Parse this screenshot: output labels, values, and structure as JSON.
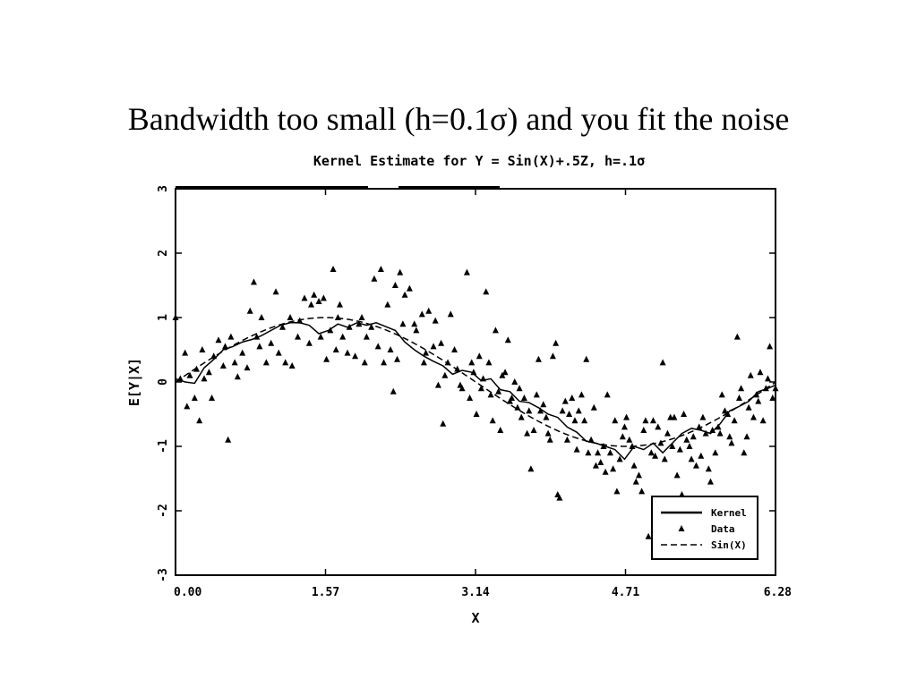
{
  "slide": {
    "title": "Bandwidth too small (h=0.1σ) and you fit the noise"
  },
  "chart_data": {
    "type": "scatter",
    "title": "Kernel Estimate for Y = Sin(X)+.5Z, h=.1σ",
    "xlabel": "X",
    "ylabel": "E[Y|X]",
    "xlim": [
      0,
      6.28
    ],
    "ylim": [
      -3,
      3
    ],
    "x_ticks": [
      "0.00",
      "1.57",
      "3.14",
      "4.71",
      "6.28"
    ],
    "y_ticks": [
      "-3",
      "-2",
      "-1",
      "0",
      "1",
      "2",
      "3"
    ],
    "grid": false,
    "legend": {
      "position": "bottom-right",
      "entries": [
        {
          "label": "Kernel",
          "style": "solid-line"
        },
        {
          "label": "Data",
          "style": "triangle-marker"
        },
        {
          "label": "Sin(X)",
          "style": "dashed-line"
        }
      ]
    },
    "series": [
      {
        "name": "Kernel",
        "style": "solid-line",
        "x": [
          0.0,
          0.1,
          0.2,
          0.3,
          0.4,
          0.5,
          0.6,
          0.7,
          0.8,
          0.9,
          1.0,
          1.1,
          1.2,
          1.3,
          1.4,
          1.5,
          1.6,
          1.7,
          1.8,
          1.9,
          2.0,
          2.1,
          2.2,
          2.3,
          2.4,
          2.5,
          2.6,
          2.7,
          2.8,
          2.9,
          3.0,
          3.1,
          3.2,
          3.3,
          3.4,
          3.5,
          3.6,
          3.7,
          3.8,
          3.9,
          4.0,
          4.1,
          4.2,
          4.3,
          4.4,
          4.5,
          4.6,
          4.7,
          4.8,
          4.9,
          5.0,
          5.1,
          5.2,
          5.3,
          5.4,
          5.5,
          5.6,
          5.7,
          5.8,
          5.9,
          6.0,
          6.1,
          6.2,
          6.28
        ],
        "y": [
          0.05,
          0.0,
          -0.02,
          0.22,
          0.35,
          0.5,
          0.55,
          0.62,
          0.66,
          0.72,
          0.8,
          0.88,
          0.92,
          0.92,
          0.88,
          0.75,
          0.8,
          0.9,
          0.85,
          0.92,
          0.88,
          0.92,
          0.86,
          0.8,
          0.62,
          0.5,
          0.4,
          0.32,
          0.25,
          0.12,
          0.18,
          0.15,
          0.02,
          0.05,
          -0.12,
          -0.15,
          -0.3,
          -0.32,
          -0.4,
          -0.5,
          -0.55,
          -0.7,
          -0.78,
          -0.92,
          -0.95,
          -1.0,
          -1.05,
          -1.2,
          -1.0,
          -1.05,
          -0.95,
          -1.1,
          -0.95,
          -0.8,
          -0.72,
          -0.75,
          -0.8,
          -0.65,
          -0.45,
          -0.38,
          -0.3,
          -0.15,
          -0.1,
          -0.05
        ]
      },
      {
        "name": "Sin(X)",
        "style": "dashed-line",
        "function": "sin"
      },
      {
        "name": "Data",
        "style": "triangle-marker",
        "points": [
          [
            0.0,
            1.0
          ],
          [
            0.05,
            0.05
          ],
          [
            0.1,
            0.45
          ],
          [
            0.12,
            -0.38
          ],
          [
            0.15,
            0.1
          ],
          [
            0.2,
            -0.25
          ],
          [
            0.22,
            0.2
          ],
          [
            0.25,
            -0.6
          ],
          [
            0.28,
            0.5
          ],
          [
            0.3,
            0.05
          ],
          [
            0.35,
            0.15
          ],
          [
            0.38,
            -0.25
          ],
          [
            0.4,
            0.4
          ],
          [
            0.45,
            0.65
          ],
          [
            0.5,
            0.25
          ],
          [
            0.52,
            0.55
          ],
          [
            0.55,
            -0.9
          ],
          [
            0.58,
            0.7
          ],
          [
            0.62,
            0.3
          ],
          [
            0.65,
            0.08
          ],
          [
            0.7,
            0.45
          ],
          [
            0.75,
            0.22
          ],
          [
            0.78,
            1.1
          ],
          [
            0.82,
            1.55
          ],
          [
            0.85,
            0.7
          ],
          [
            0.88,
            0.55
          ],
          [
            0.9,
            1.0
          ],
          [
            0.95,
            0.3
          ],
          [
            1.0,
            0.6
          ],
          [
            1.05,
            1.4
          ],
          [
            1.08,
            0.45
          ],
          [
            1.12,
            0.85
          ],
          [
            1.15,
            0.3
          ],
          [
            1.2,
            1.0
          ],
          [
            1.22,
            0.25
          ],
          [
            1.28,
            0.7
          ],
          [
            1.3,
            0.95
          ],
          [
            1.35,
            1.3
          ],
          [
            1.4,
            0.6
          ],
          [
            1.42,
            1.2
          ],
          [
            1.45,
            1.35
          ],
          [
            1.5,
            1.25
          ],
          [
            1.52,
            0.7
          ],
          [
            1.55,
            1.3
          ],
          [
            1.58,
            0.35
          ],
          [
            1.62,
            0.8
          ],
          [
            1.65,
            1.75
          ],
          [
            1.68,
            0.5
          ],
          [
            1.7,
            1.0
          ],
          [
            1.72,
            1.2
          ],
          [
            1.75,
            0.7
          ],
          [
            1.8,
            0.45
          ],
          [
            1.82,
            0.85
          ],
          [
            1.88,
            0.4
          ],
          [
            1.92,
            0.9
          ],
          [
            1.95,
            1.0
          ],
          [
            1.98,
            0.3
          ],
          [
            2.0,
            0.7
          ],
          [
            2.05,
            0.85
          ],
          [
            2.08,
            1.6
          ],
          [
            2.12,
            0.55
          ],
          [
            2.15,
            1.75
          ],
          [
            2.18,
            0.3
          ],
          [
            2.22,
            1.2
          ],
          [
            2.25,
            0.5
          ],
          [
            2.28,
            -0.15
          ],
          [
            2.3,
            1.5
          ],
          [
            2.32,
            0.35
          ],
          [
            2.35,
            1.7
          ],
          [
            2.38,
            0.9
          ],
          [
            2.4,
            1.35
          ],
          [
            2.45,
            1.45
          ],
          [
            2.5,
            0.9
          ],
          [
            2.52,
            0.8
          ],
          [
            2.58,
            1.05
          ],
          [
            2.6,
            0.3
          ],
          [
            2.62,
            0.45
          ],
          [
            2.65,
            1.1
          ],
          [
            2.7,
            0.55
          ],
          [
            2.72,
            0.95
          ],
          [
            2.75,
            -0.05
          ],
          [
            2.78,
            0.6
          ],
          [
            2.8,
            -0.65
          ],
          [
            2.82,
            0.1
          ],
          [
            2.85,
            0.3
          ],
          [
            2.88,
            1.05
          ],
          [
            2.92,
            0.5
          ],
          [
            2.95,
            0.2
          ],
          [
            2.98,
            -0.05
          ],
          [
            3.0,
            -0.1
          ],
          [
            3.05,
            1.7
          ],
          [
            3.08,
            -0.25
          ],
          [
            3.1,
            0.3
          ],
          [
            3.12,
            0.15
          ],
          [
            3.15,
            -0.5
          ],
          [
            3.18,
            0.4
          ],
          [
            3.2,
            -0.1
          ],
          [
            3.22,
            0.05
          ],
          [
            3.25,
            1.4
          ],
          [
            3.28,
            0.3
          ],
          [
            3.3,
            -0.2
          ],
          [
            3.32,
            -0.6
          ],
          [
            3.35,
            0.8
          ],
          [
            3.38,
            -0.15
          ],
          [
            3.4,
            -0.75
          ],
          [
            3.42,
            0.1
          ],
          [
            3.45,
            0.15
          ],
          [
            3.48,
            0.65
          ],
          [
            3.5,
            -0.3
          ],
          [
            3.52,
            -0.25
          ],
          [
            3.55,
            0.0
          ],
          [
            3.58,
            -0.4
          ],
          [
            3.6,
            -0.1
          ],
          [
            3.62,
            -0.55
          ],
          [
            3.65,
            -0.25
          ],
          [
            3.68,
            -0.8
          ],
          [
            3.7,
            -0.45
          ],
          [
            3.72,
            -1.35
          ],
          [
            3.75,
            -0.75
          ],
          [
            3.78,
            -0.2
          ],
          [
            3.8,
            0.35
          ],
          [
            3.82,
            -0.45
          ],
          [
            3.85,
            -0.35
          ],
          [
            3.88,
            -0.55
          ],
          [
            3.9,
            -0.8
          ],
          [
            3.92,
            -0.9
          ],
          [
            3.95,
            0.4
          ],
          [
            3.98,
            0.6
          ],
          [
            4.0,
            -1.75
          ],
          [
            4.02,
            -1.8
          ],
          [
            4.05,
            -0.45
          ],
          [
            4.08,
            -0.3
          ],
          [
            4.1,
            -0.9
          ],
          [
            4.12,
            -0.5
          ],
          [
            4.15,
            -0.25
          ],
          [
            4.18,
            -0.6
          ],
          [
            4.2,
            -1.05
          ],
          [
            4.22,
            -0.45
          ],
          [
            4.25,
            -0.2
          ],
          [
            4.28,
            -0.6
          ],
          [
            4.3,
            0.35
          ],
          [
            4.32,
            -1.1
          ],
          [
            4.35,
            -0.9
          ],
          [
            4.38,
            -0.4
          ],
          [
            4.4,
            -1.3
          ],
          [
            4.42,
            -1.1
          ],
          [
            4.45,
            -1.25
          ],
          [
            4.48,
            -1.0
          ],
          [
            4.5,
            -1.4
          ],
          [
            4.52,
            -0.2
          ],
          [
            4.55,
            -1.1
          ],
          [
            4.58,
            -1.35
          ],
          [
            4.6,
            -0.6
          ],
          [
            4.62,
            -1.7
          ],
          [
            4.65,
            -1.2
          ],
          [
            4.68,
            -0.85
          ],
          [
            4.7,
            -0.7
          ],
          [
            4.72,
            -0.55
          ],
          [
            4.75,
            -0.9
          ],
          [
            4.78,
            -1.0
          ],
          [
            4.8,
            -1.3
          ],
          [
            4.82,
            -1.55
          ],
          [
            4.85,
            -1.45
          ],
          [
            4.88,
            -1.7
          ],
          [
            4.9,
            -0.75
          ],
          [
            4.92,
            -0.6
          ],
          [
            4.95,
            -2.4
          ],
          [
            4.98,
            -1.1
          ],
          [
            5.0,
            -0.6
          ],
          [
            5.02,
            -1.15
          ],
          [
            5.05,
            -0.7
          ],
          [
            5.08,
            -0.95
          ],
          [
            5.1,
            0.3
          ],
          [
            5.12,
            -1.2
          ],
          [
            5.15,
            -0.8
          ],
          [
            5.18,
            -0.55
          ],
          [
            5.2,
            -1.0
          ],
          [
            5.22,
            -0.55
          ],
          [
            5.25,
            -1.45
          ],
          [
            5.28,
            -1.05
          ],
          [
            5.3,
            -1.75
          ],
          [
            5.32,
            -0.5
          ],
          [
            5.35,
            -0.9
          ],
          [
            5.38,
            -1.0
          ],
          [
            5.4,
            -1.2
          ],
          [
            5.42,
            -0.85
          ],
          [
            5.45,
            -1.3
          ],
          [
            5.48,
            -0.7
          ],
          [
            5.5,
            -1.15
          ],
          [
            5.52,
            -0.55
          ],
          [
            5.55,
            -0.8
          ],
          [
            5.58,
            -1.35
          ],
          [
            5.6,
            -1.55
          ],
          [
            5.62,
            -0.75
          ],
          [
            5.65,
            -1.1
          ],
          [
            5.68,
            -0.7
          ],
          [
            5.7,
            -0.8
          ],
          [
            5.72,
            -0.2
          ],
          [
            5.75,
            -0.45
          ],
          [
            5.78,
            -0.5
          ],
          [
            5.8,
            -0.85
          ],
          [
            5.82,
            -0.95
          ],
          [
            5.85,
            -0.6
          ],
          [
            5.88,
            0.7
          ],
          [
            5.9,
            -0.25
          ],
          [
            5.92,
            -0.1
          ],
          [
            5.95,
            -1.1
          ],
          [
            5.98,
            -0.85
          ],
          [
            6.0,
            -0.4
          ],
          [
            6.02,
            0.1
          ],
          [
            6.05,
            -0.55
          ],
          [
            6.08,
            -0.2
          ],
          [
            6.1,
            -0.3
          ],
          [
            6.12,
            0.15
          ],
          [
            6.15,
            -0.6
          ],
          [
            6.18,
            -0.1
          ],
          [
            6.2,
            0.05
          ],
          [
            6.22,
            0.55
          ],
          [
            6.25,
            -0.25
          ],
          [
            6.28,
            -0.1
          ]
        ]
      }
    ]
  }
}
